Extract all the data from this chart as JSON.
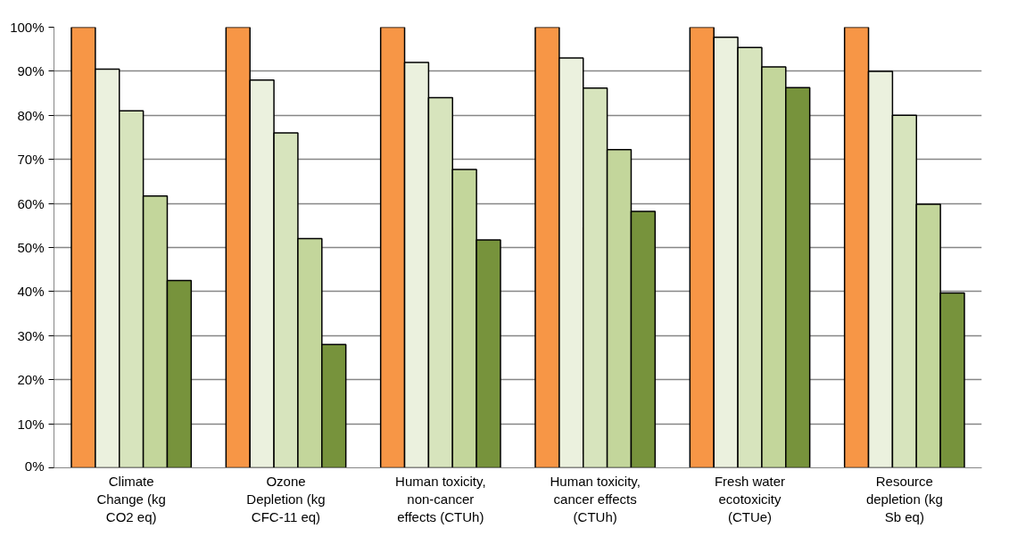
{
  "chart_data": {
    "type": "bar",
    "categories": [
      "Climate\nChange (kg\nCO2 eq)",
      "Ozone\nDepletion (kg\nCFC-11 eq)",
      "Human toxicity,\nnon-cancer\neffects (CTUh)",
      "Human toxicity,\ncancer effects\n(CTUh)",
      "Fresh water\necotoxicity\n(CTUe)",
      "Resource\ndepletion (kg\nSb eq)"
    ],
    "series": [
      {
        "color": "#f79646",
        "values": [
          100,
          100,
          100,
          100,
          100,
          100
        ]
      },
      {
        "color": "#ebf1de",
        "values": [
          90.5,
          88,
          92,
          93,
          97.7,
          90
        ]
      },
      {
        "color": "#d7e4bd",
        "values": [
          81,
          76,
          84,
          86.2,
          95.4,
          80
        ]
      },
      {
        "color": "#c3d69b",
        "values": [
          61.7,
          52,
          67.7,
          72.2,
          91,
          59.8
        ]
      },
      {
        "color": "#77933c",
        "values": [
          42.5,
          28,
          51.7,
          58.2,
          86.3,
          39.7
        ]
      }
    ],
    "ylim": [
      0,
      100
    ],
    "yticks": [
      {
        "value": 0,
        "label": "0%"
      },
      {
        "value": 10,
        "label": "10%"
      },
      {
        "value": 20,
        "label": "20%"
      },
      {
        "value": 30,
        "label": "30%"
      },
      {
        "value": 40,
        "label": "40%"
      },
      {
        "value": 50,
        "label": "50%"
      },
      {
        "value": 60,
        "label": "60%"
      },
      {
        "value": 70,
        "label": "70%"
      },
      {
        "value": 80,
        "label": "80%"
      },
      {
        "value": 90,
        "label": "90%"
      },
      {
        "value": 100,
        "label": "100%"
      }
    ],
    "grid": "y",
    "stacked": false
  }
}
